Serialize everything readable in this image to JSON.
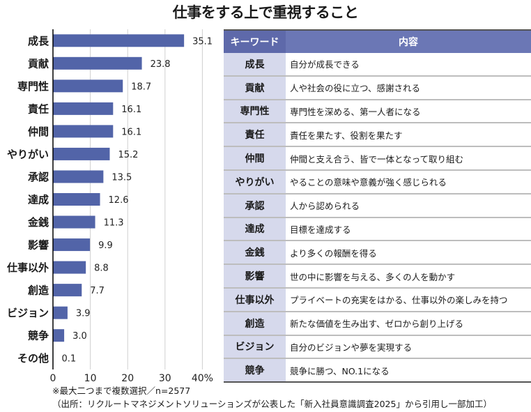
{
  "title": "仕事をする上で重視すること",
  "chart_data": {
    "type": "bar",
    "orientation": "horizontal",
    "title": "仕事をする上で重視すること",
    "categories": [
      "成長",
      "貢献",
      "専門性",
      "責任",
      "仲間",
      "やりがい",
      "承認",
      "達成",
      "金銭",
      "影響",
      "仕事以外",
      "創造",
      "ビジョン",
      "競争",
      "その他"
    ],
    "values": [
      35.1,
      23.8,
      18.7,
      16.1,
      16.1,
      15.2,
      13.5,
      12.6,
      11.3,
      9.9,
      8.8,
      7.7,
      3.9,
      3.0,
      0.1
    ],
    "value_labels": [
      "35.1",
      "23.8",
      "18.7",
      "16.1",
      "16.1",
      "15.2",
      "13.5",
      "12.6",
      "11.3",
      "9.9",
      "8.8",
      "7.7",
      "3.9",
      "3.0",
      "0.1"
    ],
    "xlim": [
      0,
      40
    ],
    "xticks": [
      0,
      10,
      20,
      30,
      40
    ],
    "xtick_labels": [
      "0",
      "10",
      "20",
      "30",
      "40%"
    ],
    "xlabel": "",
    "ylabel": "",
    "unit": "%",
    "grid": true,
    "bar_color": "#5264a8"
  },
  "table": {
    "headers": {
      "keyword": "キーワード",
      "content": "内容"
    },
    "rows": [
      {
        "keyword": "成長",
        "content": "自分が成長できる"
      },
      {
        "keyword": "貢献",
        "content": "人や社会の役に立つ、感謝される"
      },
      {
        "keyword": "専門性",
        "content": "専門性を深める、第一人者になる"
      },
      {
        "keyword": "責任",
        "content": "責任を果たす、役割を果たす"
      },
      {
        "keyword": "仲間",
        "content": "仲間と支え合う、皆で一体となって取り組む"
      },
      {
        "keyword": "やりがい",
        "content": "やることの意味や意義が強く感じられる"
      },
      {
        "keyword": "承認",
        "content": "人から認められる"
      },
      {
        "keyword": "達成",
        "content": "目標を達成する"
      },
      {
        "keyword": "金銭",
        "content": "より多くの報酬を得る"
      },
      {
        "keyword": "影響",
        "content": "世の中に影響を与える、多くの人を動かす"
      },
      {
        "keyword": "仕事以外",
        "content": "プライベートの充実をはかる、仕事以外の楽しみを持つ"
      },
      {
        "keyword": "創造",
        "content": "新たな価値を生み出す、ゼロから創り上げる"
      },
      {
        "keyword": "ビジョン",
        "content": "自分のビジョンや夢を実現する"
      },
      {
        "keyword": "競争",
        "content": "競争に勝つ、NO.1になる"
      }
    ],
    "header_color": "#6b77b5",
    "keyword_bg": "#d6d9ec"
  },
  "notes": {
    "line1": "※最大二つまで複数選択／n=2577",
    "line2": "（出所：リクルートマネジメントソリューションズが公表した「新入社員意識調査2025」から引用し一部加工）"
  }
}
